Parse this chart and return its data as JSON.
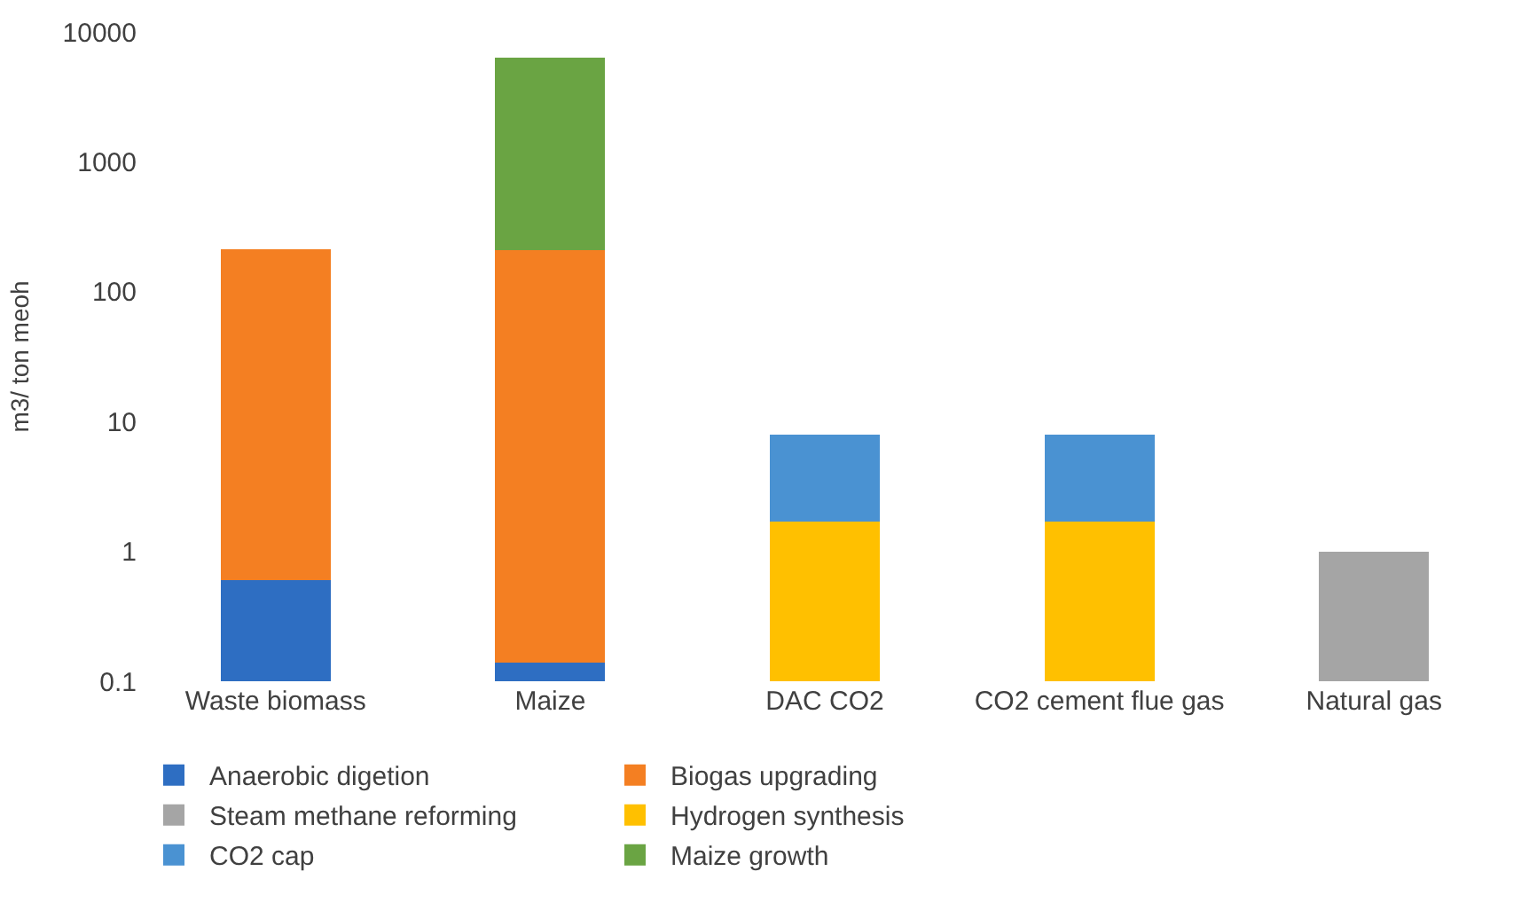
{
  "chart_data": {
    "type": "bar",
    "stacked": true,
    "log": true,
    "ylabel": "m3/ ton meoh",
    "categories": [
      "Waste biomass",
      "Maize",
      "DAC CO2",
      "CO2 cement flue gas",
      "Natural gas"
    ],
    "series": [
      {
        "name": "Anaerobic digetion",
        "color": "#2e6ec2",
        "values": [
          0.6,
          0.14,
          null,
          null,
          null
        ]
      },
      {
        "name": "Biogas upgrading",
        "color": "#f47f22",
        "values": [
          210,
          210,
          null,
          null,
          null
        ]
      },
      {
        "name": "Steam methane reforming",
        "color": "#a5a5a5",
        "values": [
          null,
          null,
          null,
          null,
          1
        ]
      },
      {
        "name": "Hydrogen synthesis",
        "color": "#ffc000",
        "values": [
          null,
          null,
          1.7,
          1.7,
          null
        ]
      },
      {
        "name": "CO2 cap",
        "color": "#4a92d2",
        "values": [
          null,
          null,
          6.2,
          6.2,
          null
        ]
      },
      {
        "name": "Maize growth",
        "color": "#6aa443",
        "values": [
          null,
          6100,
          null,
          null,
          null
        ]
      }
    ],
    "ylim": [
      0.1,
      10000
    ],
    "yticks": [
      0.1,
      1,
      10,
      100,
      1000,
      10000
    ],
    "legend": "bottom"
  }
}
